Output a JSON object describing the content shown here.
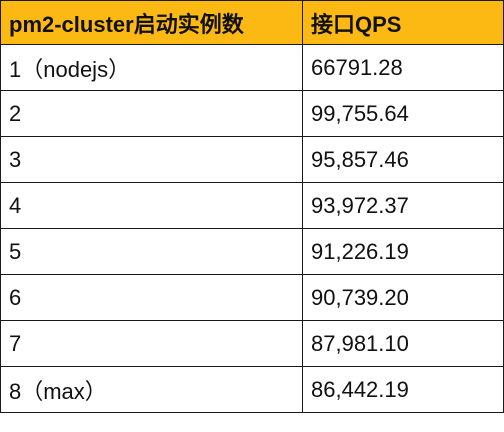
{
  "table": {
    "header_bg": "#fdb913",
    "columns": [
      "pm2-cluster启动实例数",
      "接口QPS"
    ],
    "rows": [
      [
        "1（nodejs）",
        "66791.28"
      ],
      [
        "2",
        "99,755.64"
      ],
      [
        "3",
        "95,857.46"
      ],
      [
        "4",
        "93,972.37"
      ],
      [
        "5",
        "91,226.19"
      ],
      [
        "6",
        "90,739.20"
      ],
      [
        "7",
        "87,981.10"
      ],
      [
        "8（max）",
        "86,442.19"
      ]
    ]
  }
}
